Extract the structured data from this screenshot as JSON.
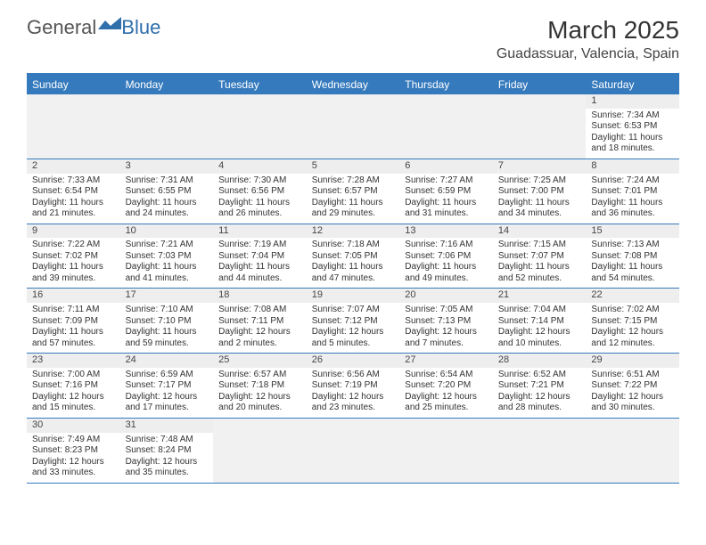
{
  "logo": {
    "general": "General",
    "blue": "Blue"
  },
  "title": "March 2025",
  "location": "Guadassuar, Valencia, Spain",
  "columns": [
    "Sunday",
    "Monday",
    "Tuesday",
    "Wednesday",
    "Thursday",
    "Friday",
    "Saturday"
  ],
  "colors": {
    "header_bg": "#357abd",
    "header_text": "#ffffff",
    "daynum_bg": "#eeeeee",
    "border": "#357abd",
    "blank_bg": "#f1f1f1",
    "logo_blue": "#2f6fab",
    "text": "#333333"
  },
  "typography": {
    "title_fontsize": 28,
    "location_fontsize": 16,
    "header_fontsize": 12,
    "cell_fontsize": 10
  },
  "weeks": [
    [
      {
        "blank": true
      },
      {
        "blank": true
      },
      {
        "blank": true
      },
      {
        "blank": true
      },
      {
        "blank": true
      },
      {
        "blank": true
      },
      {
        "day": "1",
        "sunrise": "Sunrise: 7:34 AM",
        "sunset": "Sunset: 6:53 PM",
        "daylight1": "Daylight: 11 hours",
        "daylight2": "and 18 minutes."
      }
    ],
    [
      {
        "day": "2",
        "sunrise": "Sunrise: 7:33 AM",
        "sunset": "Sunset: 6:54 PM",
        "daylight1": "Daylight: 11 hours",
        "daylight2": "and 21 minutes."
      },
      {
        "day": "3",
        "sunrise": "Sunrise: 7:31 AM",
        "sunset": "Sunset: 6:55 PM",
        "daylight1": "Daylight: 11 hours",
        "daylight2": "and 24 minutes."
      },
      {
        "day": "4",
        "sunrise": "Sunrise: 7:30 AM",
        "sunset": "Sunset: 6:56 PM",
        "daylight1": "Daylight: 11 hours",
        "daylight2": "and 26 minutes."
      },
      {
        "day": "5",
        "sunrise": "Sunrise: 7:28 AM",
        "sunset": "Sunset: 6:57 PM",
        "daylight1": "Daylight: 11 hours",
        "daylight2": "and 29 minutes."
      },
      {
        "day": "6",
        "sunrise": "Sunrise: 7:27 AM",
        "sunset": "Sunset: 6:59 PM",
        "daylight1": "Daylight: 11 hours",
        "daylight2": "and 31 minutes."
      },
      {
        "day": "7",
        "sunrise": "Sunrise: 7:25 AM",
        "sunset": "Sunset: 7:00 PM",
        "daylight1": "Daylight: 11 hours",
        "daylight2": "and 34 minutes."
      },
      {
        "day": "8",
        "sunrise": "Sunrise: 7:24 AM",
        "sunset": "Sunset: 7:01 PM",
        "daylight1": "Daylight: 11 hours",
        "daylight2": "and 36 minutes."
      }
    ],
    [
      {
        "day": "9",
        "sunrise": "Sunrise: 7:22 AM",
        "sunset": "Sunset: 7:02 PM",
        "daylight1": "Daylight: 11 hours",
        "daylight2": "and 39 minutes."
      },
      {
        "day": "10",
        "sunrise": "Sunrise: 7:21 AM",
        "sunset": "Sunset: 7:03 PM",
        "daylight1": "Daylight: 11 hours",
        "daylight2": "and 41 minutes."
      },
      {
        "day": "11",
        "sunrise": "Sunrise: 7:19 AM",
        "sunset": "Sunset: 7:04 PM",
        "daylight1": "Daylight: 11 hours",
        "daylight2": "and 44 minutes."
      },
      {
        "day": "12",
        "sunrise": "Sunrise: 7:18 AM",
        "sunset": "Sunset: 7:05 PM",
        "daylight1": "Daylight: 11 hours",
        "daylight2": "and 47 minutes."
      },
      {
        "day": "13",
        "sunrise": "Sunrise: 7:16 AM",
        "sunset": "Sunset: 7:06 PM",
        "daylight1": "Daylight: 11 hours",
        "daylight2": "and 49 minutes."
      },
      {
        "day": "14",
        "sunrise": "Sunrise: 7:15 AM",
        "sunset": "Sunset: 7:07 PM",
        "daylight1": "Daylight: 11 hours",
        "daylight2": "and 52 minutes."
      },
      {
        "day": "15",
        "sunrise": "Sunrise: 7:13 AM",
        "sunset": "Sunset: 7:08 PM",
        "daylight1": "Daylight: 11 hours",
        "daylight2": "and 54 minutes."
      }
    ],
    [
      {
        "day": "16",
        "sunrise": "Sunrise: 7:11 AM",
        "sunset": "Sunset: 7:09 PM",
        "daylight1": "Daylight: 11 hours",
        "daylight2": "and 57 minutes."
      },
      {
        "day": "17",
        "sunrise": "Sunrise: 7:10 AM",
        "sunset": "Sunset: 7:10 PM",
        "daylight1": "Daylight: 11 hours",
        "daylight2": "and 59 minutes."
      },
      {
        "day": "18",
        "sunrise": "Sunrise: 7:08 AM",
        "sunset": "Sunset: 7:11 PM",
        "daylight1": "Daylight: 12 hours",
        "daylight2": "and 2 minutes."
      },
      {
        "day": "19",
        "sunrise": "Sunrise: 7:07 AM",
        "sunset": "Sunset: 7:12 PM",
        "daylight1": "Daylight: 12 hours",
        "daylight2": "and 5 minutes."
      },
      {
        "day": "20",
        "sunrise": "Sunrise: 7:05 AM",
        "sunset": "Sunset: 7:13 PM",
        "daylight1": "Daylight: 12 hours",
        "daylight2": "and 7 minutes."
      },
      {
        "day": "21",
        "sunrise": "Sunrise: 7:04 AM",
        "sunset": "Sunset: 7:14 PM",
        "daylight1": "Daylight: 12 hours",
        "daylight2": "and 10 minutes."
      },
      {
        "day": "22",
        "sunrise": "Sunrise: 7:02 AM",
        "sunset": "Sunset: 7:15 PM",
        "daylight1": "Daylight: 12 hours",
        "daylight2": "and 12 minutes."
      }
    ],
    [
      {
        "day": "23",
        "sunrise": "Sunrise: 7:00 AM",
        "sunset": "Sunset: 7:16 PM",
        "daylight1": "Daylight: 12 hours",
        "daylight2": "and 15 minutes."
      },
      {
        "day": "24",
        "sunrise": "Sunrise: 6:59 AM",
        "sunset": "Sunset: 7:17 PM",
        "daylight1": "Daylight: 12 hours",
        "daylight2": "and 17 minutes."
      },
      {
        "day": "25",
        "sunrise": "Sunrise: 6:57 AM",
        "sunset": "Sunset: 7:18 PM",
        "daylight1": "Daylight: 12 hours",
        "daylight2": "and 20 minutes."
      },
      {
        "day": "26",
        "sunrise": "Sunrise: 6:56 AM",
        "sunset": "Sunset: 7:19 PM",
        "daylight1": "Daylight: 12 hours",
        "daylight2": "and 23 minutes."
      },
      {
        "day": "27",
        "sunrise": "Sunrise: 6:54 AM",
        "sunset": "Sunset: 7:20 PM",
        "daylight1": "Daylight: 12 hours",
        "daylight2": "and 25 minutes."
      },
      {
        "day": "28",
        "sunrise": "Sunrise: 6:52 AM",
        "sunset": "Sunset: 7:21 PM",
        "daylight1": "Daylight: 12 hours",
        "daylight2": "and 28 minutes."
      },
      {
        "day": "29",
        "sunrise": "Sunrise: 6:51 AM",
        "sunset": "Sunset: 7:22 PM",
        "daylight1": "Daylight: 12 hours",
        "daylight2": "and 30 minutes."
      }
    ],
    [
      {
        "day": "30",
        "sunrise": "Sunrise: 7:49 AM",
        "sunset": "Sunset: 8:23 PM",
        "daylight1": "Daylight: 12 hours",
        "daylight2": "and 33 minutes."
      },
      {
        "day": "31",
        "sunrise": "Sunrise: 7:48 AM",
        "sunset": "Sunset: 8:24 PM",
        "daylight1": "Daylight: 12 hours",
        "daylight2": "and 35 minutes."
      },
      {
        "blank": true
      },
      {
        "blank": true
      },
      {
        "blank": true
      },
      {
        "blank": true
      },
      {
        "blank": true
      }
    ]
  ]
}
